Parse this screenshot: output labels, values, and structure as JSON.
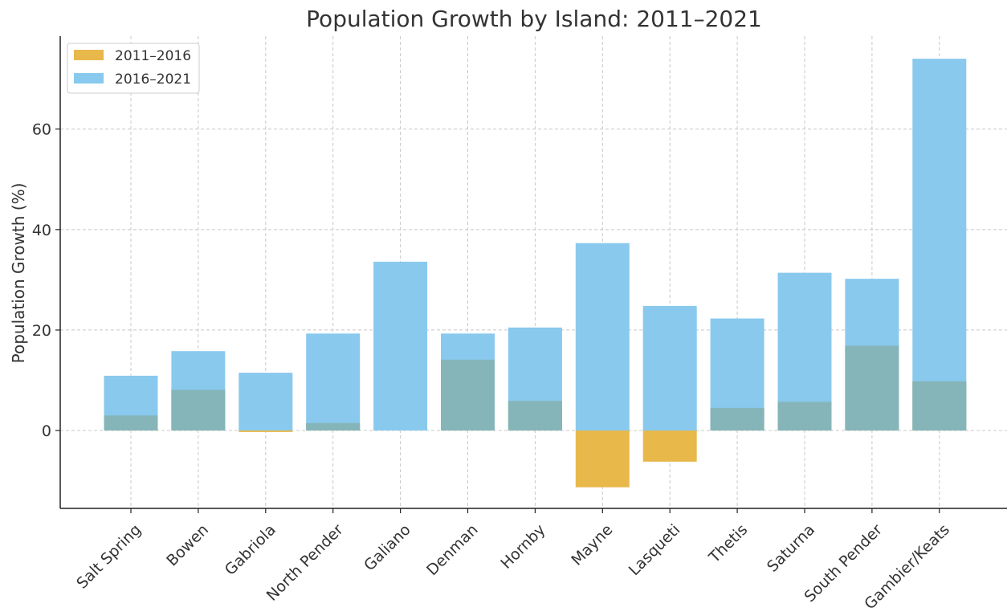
{
  "chart_data": {
    "type": "bar",
    "title": "Population Growth by Island: 2011–2021",
    "xlabel": "",
    "ylabel": "Population Growth (%)",
    "categories": [
      "Salt Spring",
      "Bowen",
      "Gabriola",
      "North Pender",
      "Galiano",
      "Denman",
      "Hornby",
      "Mayne",
      "Lasqueti",
      "Thetis",
      "Saturna",
      "South Pender",
      "Gambier/Keats"
    ],
    "series": [
      {
        "name": "2011–2016",
        "color": "#E8B84B",
        "values": [
          3.0,
          8.1,
          -0.3,
          1.5,
          0.0,
          14.1,
          5.9,
          -11.3,
          -6.2,
          4.5,
          5.7,
          16.9,
          9.8
        ]
      },
      {
        "name": "2016–2021",
        "color": "#89C9EE",
        "values": [
          10.9,
          15.8,
          11.5,
          19.3,
          33.6,
          19.3,
          20.5,
          37.3,
          24.8,
          22.3,
          31.4,
          30.2,
          74.0
        ]
      }
    ],
    "overlap_color": "#85B5B8",
    "ylim": [
      -15.5,
      78.5
    ],
    "yticks": [
      0,
      20,
      40,
      60
    ],
    "grid": true,
    "legend_position": "top-left",
    "bar_mode": "overlaid"
  }
}
